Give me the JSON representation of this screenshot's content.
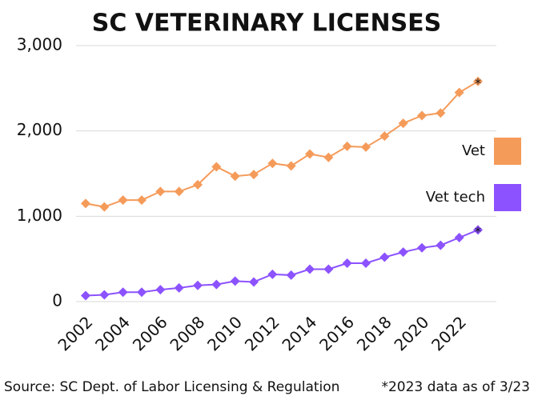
{
  "chart_data": {
    "type": "line",
    "title": "SC VETERINARY LICENSES",
    "x": [
      2002,
      2003,
      2004,
      2005,
      2006,
      2007,
      2008,
      2009,
      2010,
      2011,
      2012,
      2013,
      2014,
      2015,
      2016,
      2017,
      2018,
      2019,
      2020,
      2021,
      2022,
      2023
    ],
    "xlim": [
      2002,
      2023
    ],
    "xticks": [
      2002,
      2004,
      2006,
      2008,
      2010,
      2012,
      2014,
      2016,
      2018,
      2020,
      2022
    ],
    "ylim": [
      0,
      3000
    ],
    "yticks": [
      0,
      {
        "value": 1000,
        "label": "1,000"
      },
      {
        "value": 2000,
        "label": "2,000"
      },
      {
        "value": 3000,
        "label": "3,000"
      }
    ],
    "grid": true,
    "legend": "right",
    "marker": "diamond",
    "series": [
      {
        "name": "Vet",
        "color": "#f59b5a",
        "values": [
          1150,
          1110,
          1190,
          1190,
          1290,
          1290,
          1370,
          1580,
          1470,
          1490,
          1620,
          1590,
          1730,
          1690,
          1820,
          1810,
          1940,
          2090,
          2180,
          2210,
          2450,
          2580
        ]
      },
      {
        "name": "Vet tech",
        "color": "#8c52ff",
        "values": [
          70,
          80,
          110,
          110,
          140,
          160,
          190,
          200,
          240,
          230,
          320,
          310,
          380,
          380,
          450,
          450,
          520,
          580,
          630,
          660,
          750,
          840
        ]
      }
    ],
    "annotations": [
      "*",
      "*"
    ],
    "source": "Source: SC Dept. of Labor Licensing & Regulation",
    "note": "*2023 data as of 3/23"
  }
}
